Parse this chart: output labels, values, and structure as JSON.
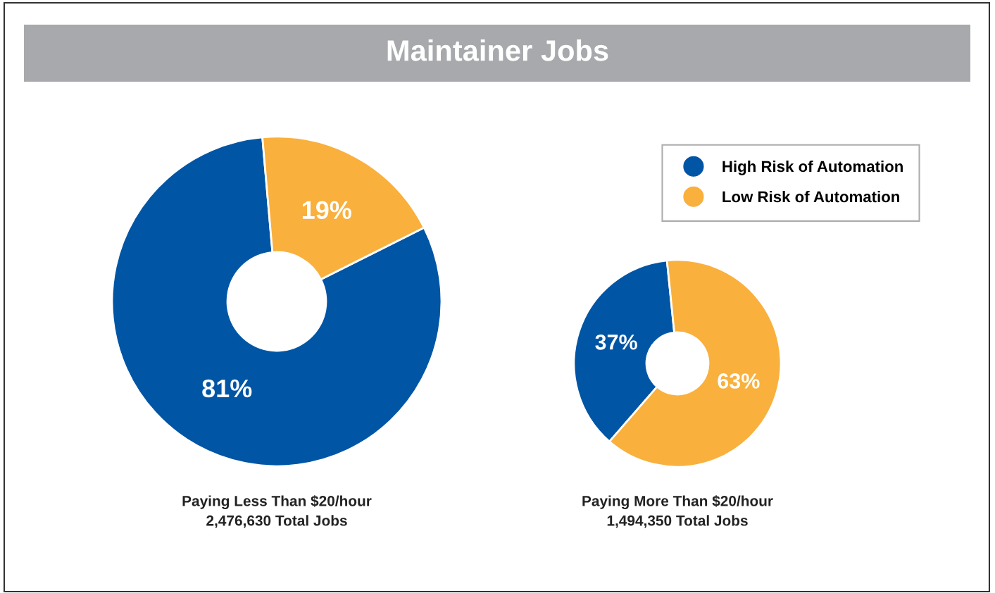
{
  "chart_data": [
    {
      "type": "donut",
      "title": "Maintainer Jobs",
      "categories": [
        "High Risk of Automation",
        "Low Risk of Automation"
      ],
      "values": [
        81,
        19
      ],
      "colors": [
        "#0055a5",
        "#f9b03d"
      ],
      "value_labels": [
        "81%",
        "19%"
      ],
      "annotations": [
        "Paying Less Than $20/hour",
        "2,476,630 Total Jobs"
      ],
      "legend": "top right"
    },
    {
      "type": "donut",
      "categories": [
        null,
        null
      ],
      "values": [
        37,
        63
      ],
      "colors": [
        "#0055a5",
        "#f9b03d"
      ],
      "value_labels": [
        "37%",
        "63%"
      ],
      "annotations": [
        "Paying More Than $20/hour",
        "1,494,350 Total Jobs"
      ],
      "legend": false
    }
  ]
}
